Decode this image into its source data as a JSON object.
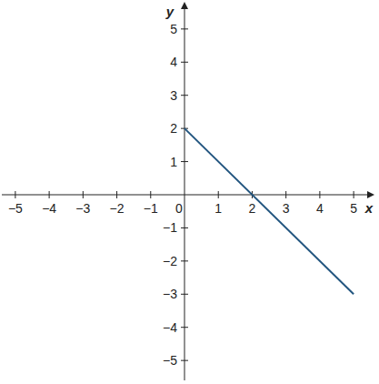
{
  "chart_data": {
    "type": "line",
    "x_label": "x",
    "y_label": "y",
    "x": [
      0,
      5
    ],
    "series": [
      {
        "name": null,
        "color": "#22557f",
        "values": [
          2,
          -3
        ]
      }
    ],
    "xlim": [
      -5.4,
      5.4
    ],
    "ylim": [
      -5.6,
      5.6
    ],
    "xticks": [
      -5,
      -4,
      -3,
      -2,
      -1,
      0,
      1,
      2,
      3,
      4,
      5
    ],
    "yticks": [
      -5,
      -4,
      -3,
      -2,
      -1,
      1,
      2,
      3,
      4,
      5
    ],
    "grid": false
  }
}
